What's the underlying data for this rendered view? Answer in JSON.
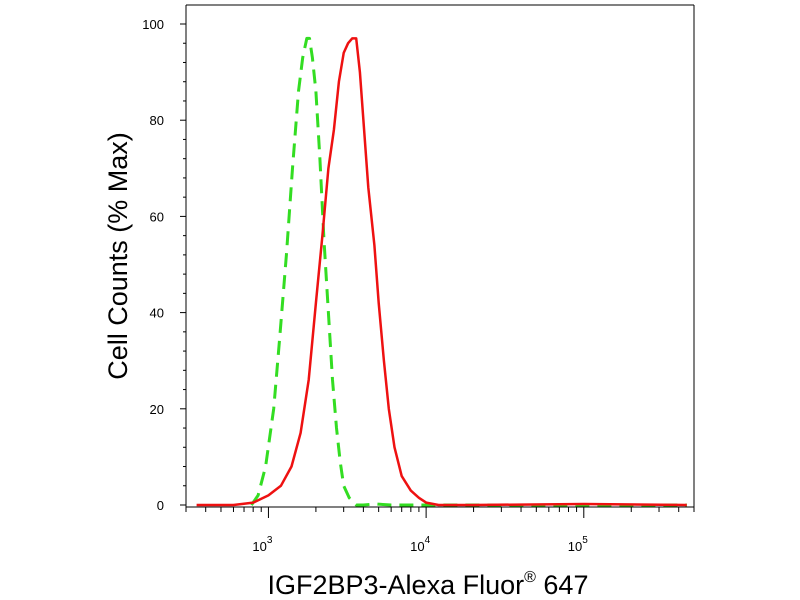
{
  "chart_data": {
    "type": "line",
    "title": "",
    "xlabel": "IGF2BP3-Alexa Fluor",
    "xlabel_superscript": "®",
    "xlabel_suffix": " 647",
    "ylabel": "Cell Counts (% Max)",
    "x_scale": "log",
    "xlim": [
      300,
      500000
    ],
    "ylim": [
      0,
      100
    ],
    "y_ticks": [
      0,
      20,
      40,
      60,
      80,
      100
    ],
    "y_tick_labels": [
      "0",
      "20",
      "40",
      "60",
      "80",
      "100"
    ],
    "x_major_ticks": [
      1000,
      10000,
      100000
    ],
    "x_tick_labels": [
      {
        "base": "10",
        "exp": "3"
      },
      {
        "base": "10",
        "exp": "4"
      },
      {
        "base": "10",
        "exp": "5"
      }
    ],
    "grid": false,
    "series": [
      {
        "style": "dashed",
        "color": "#33dd22",
        "x": [
          780,
          860,
          960,
          1080,
          1180,
          1300,
          1420,
          1550,
          1650,
          1750,
          1820,
          1900,
          2000,
          2120,
          2250,
          2400,
          2550,
          2700,
          2850,
          3000,
          3250,
          3600,
          4000,
          4800,
          6000,
          8000,
          20000,
          100000,
          450000
        ],
        "y": [
          0,
          2,
          8,
          20,
          35,
          52,
          70,
          86,
          93,
          97,
          97,
          93,
          86,
          72,
          55,
          40,
          26,
          16,
          9,
          4,
          1.5,
          0,
          0,
          0.2,
          0,
          0,
          0,
          0,
          0
        ]
      },
      {
        "style": "solid",
        "color": "#ee1111",
        "x": [
          350,
          600,
          800,
          1000,
          1200,
          1400,
          1600,
          1800,
          2000,
          2200,
          2400,
          2600,
          2800,
          3000,
          3200,
          3400,
          3600,
          3800,
          4000,
          4300,
          4700,
          5000,
          5400,
          5800,
          6300,
          7000,
          8000,
          9000,
          10000,
          12000,
          20000,
          100000,
          450000
        ],
        "y": [
          0,
          0,
          0.5,
          2,
          4,
          8,
          15,
          26,
          42,
          56,
          70,
          78,
          88,
          94,
          96,
          97,
          97,
          90,
          80,
          66,
          54,
          42,
          30,
          20,
          12,
          6,
          3,
          1.5,
          0.5,
          0,
          0,
          0.2,
          0
        ]
      }
    ]
  }
}
